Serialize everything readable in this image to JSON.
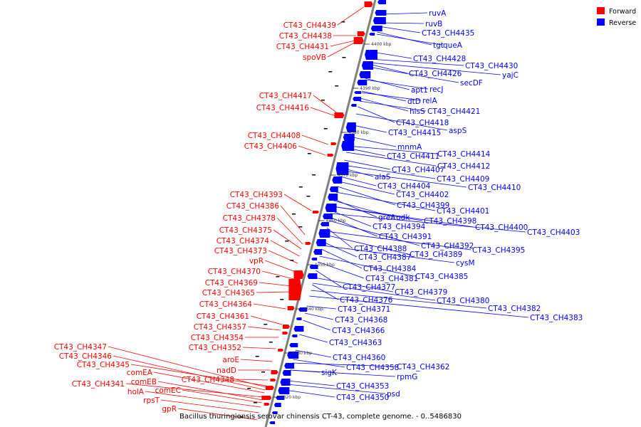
{
  "caption": "Bacillus thuringiensis serovar chinensis CT-43, complete genome. - 0..5486830",
  "legend": [
    {
      "label": "Forward",
      "color": "#ff0000"
    },
    {
      "label": "Reverse",
      "color": "#0000ff"
    }
  ],
  "colors": {
    "forward": "#ff0000",
    "reverse": "#0000ff",
    "backbone": "#808080"
  },
  "ticks": [
    "4400 kbp",
    "4390 kbp",
    "4380 kbp",
    "4370 kbp",
    "4360 kbp",
    "4350 kbp",
    "4340 kbp",
    "4330 kbp",
    "4320 kbp"
  ],
  "forward_labels": [
    "CT43_CH4439",
    "CT43_CH4438",
    "CT43_CH4431",
    "spoVB",
    "CT43_CH4417",
    "CT43_CH4416",
    "CT43_CH4408",
    "CT43_CH4406",
    "CT43_CH4393",
    "CT43_CH4386",
    "CT43_CH4378",
    "CT43_CH4375",
    "CT43_CH4374",
    "CT43_CH4373",
    "vpR",
    "CT43_CH4370",
    "CT43_CH4369",
    "CT43_CH4365",
    "CT43_CH4364",
    "CT43_CH4361",
    "CT43_CH4357",
    "CT43_CH4354",
    "CT43_CH4352",
    "aroE",
    "nadD",
    "CT43_CH4348",
    "CT43_CH4347",
    "CT43_CH4346",
    "CT43_CH4345",
    "comEA",
    "comEB",
    "comEC",
    "CT43_CH4341",
    "holA",
    "rpsT",
    "gpR"
  ],
  "reverse_labels": [
    "ruvA",
    "ruvB",
    "CT43_CH4435",
    "tgt",
    "queA",
    "CT43_CH4428",
    "CT43_CH4430",
    "yajC",
    "CT43_CH4426",
    "secDF",
    "apt1",
    "recJ",
    "dtD",
    "relA",
    "hisS",
    "CT43_CH4421",
    "CT43_CH4418",
    "aspS",
    "CT43_CH4415",
    "mnmA",
    "CT43_CH4414",
    "CT43_CH4411",
    "CT43_CH4412",
    "CT43_CH4407",
    "CT43_CH4409",
    "alaS",
    "CT43_CH4410",
    "CT43_CH4404",
    "CT43_CH4402",
    "CT43_CH4399",
    "CT43_CH4401",
    "greA",
    "udk",
    "CT43_CH4398",
    "CT43_CH4394",
    "CT43_CH4400",
    "CT43_CH4403",
    "CT43_CH4391",
    "CT43_CH4392",
    "CT43_CH4388",
    "CT43_CH4389",
    "CT43_CH4395",
    "CT43_CH4387",
    "cysM",
    "CT43_CH4384",
    "CT43_CH4385",
    "CT43_CH4381",
    "CT43_CH4377",
    "CT43_CH4379",
    "CT43_CH4376",
    "CT43_CH4380",
    "CT43_CH4382",
    "CT43_CH4383",
    "CT43_CH4371",
    "CT43_CH4368",
    "CT43_CH4366",
    "CT43_CH4363",
    "CT43_CH4360",
    "CT43_CH4358",
    "CT43_CH4362",
    "sigK",
    "rpmG",
    "CT43_CH4353",
    "psd",
    "CT43_CH4350"
  ]
}
